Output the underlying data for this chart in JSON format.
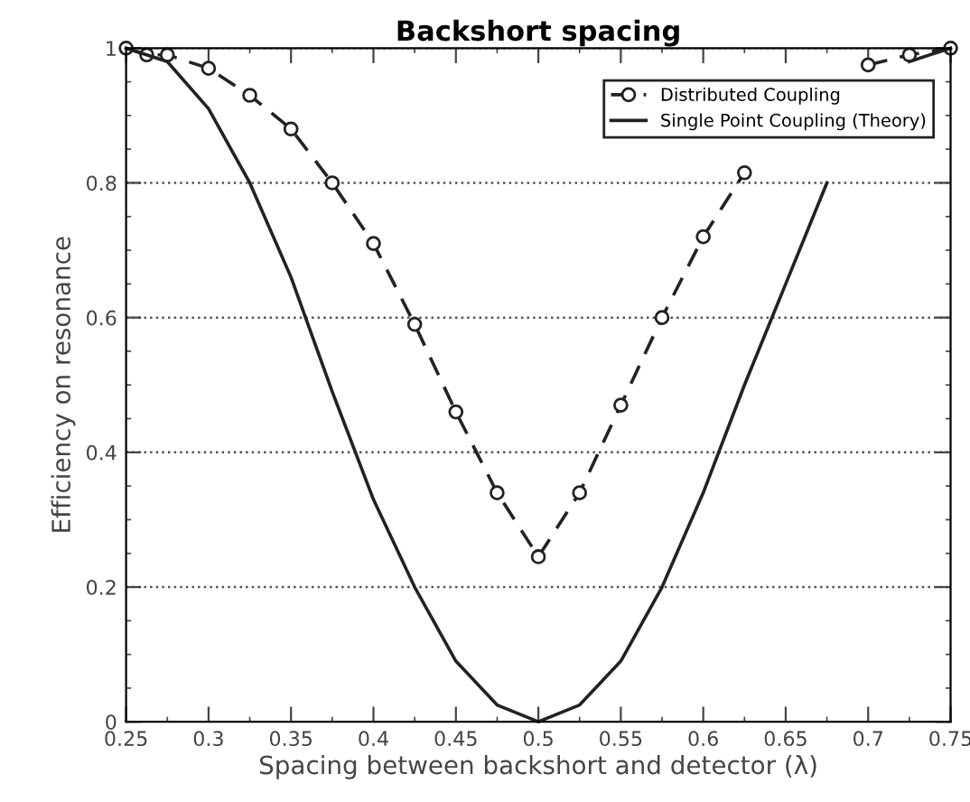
{
  "chart_data": {
    "type": "line",
    "title": "Backshort spacing",
    "xlabel": "Spacing between backshort and detector (λ)",
    "ylabel": "Efficiency on resonance",
    "xlim": [
      0.25,
      0.75
    ],
    "ylim": [
      0,
      1
    ],
    "xticks": [
      0.25,
      0.3,
      0.35,
      0.4,
      0.45,
      0.5,
      0.55,
      0.6,
      0.65,
      0.7,
      0.75
    ],
    "yticks": [
      0,
      0.2,
      0.4,
      0.6,
      0.8,
      1
    ],
    "grid": "y",
    "legend": "top right",
    "series": [
      {
        "name": "Distributed Coupling",
        "color": "#222222",
        "marker": "circle",
        "line_style": "dashed",
        "x": [
          0.25,
          0.2625,
          0.275,
          0.3,
          0.325,
          0.35,
          0.375,
          0.4,
          0.425,
          0.45,
          0.475,
          0.5,
          0.525,
          0.55,
          0.575,
          0.6,
          0.625,
          0.65,
          0.675,
          0.7,
          0.725,
          0.75
        ],
        "values": [
          1.0,
          0.99,
          0.99,
          0.97,
          0.93,
          0.88,
          0.8,
          0.71,
          0.59,
          0.46,
          0.34,
          0.245,
          0.34,
          0.47,
          0.6,
          0.72,
          0.815,
          null,
          null,
          0.975,
          0.99,
          1.0
        ]
      },
      {
        "name": "Single Point Coupling (Theory)",
        "color": "#222222",
        "marker": "none",
        "line_style": "solid",
        "x": [
          0.25,
          0.275,
          0.3,
          0.325,
          0.35,
          0.375,
          0.4,
          0.425,
          0.45,
          0.475,
          0.5,
          0.525,
          0.55,
          0.575,
          0.6,
          0.625,
          0.65,
          0.675,
          0.7,
          0.725,
          0.75
        ],
        "values": [
          1.0,
          0.98,
          0.91,
          0.8,
          0.66,
          0.49,
          0.33,
          0.2,
          0.09,
          0.025,
          0.0,
          0.025,
          0.09,
          0.2,
          0.34,
          0.5,
          0.65,
          0.8,
          null,
          0.98,
          1.0
        ]
      }
    ]
  }
}
